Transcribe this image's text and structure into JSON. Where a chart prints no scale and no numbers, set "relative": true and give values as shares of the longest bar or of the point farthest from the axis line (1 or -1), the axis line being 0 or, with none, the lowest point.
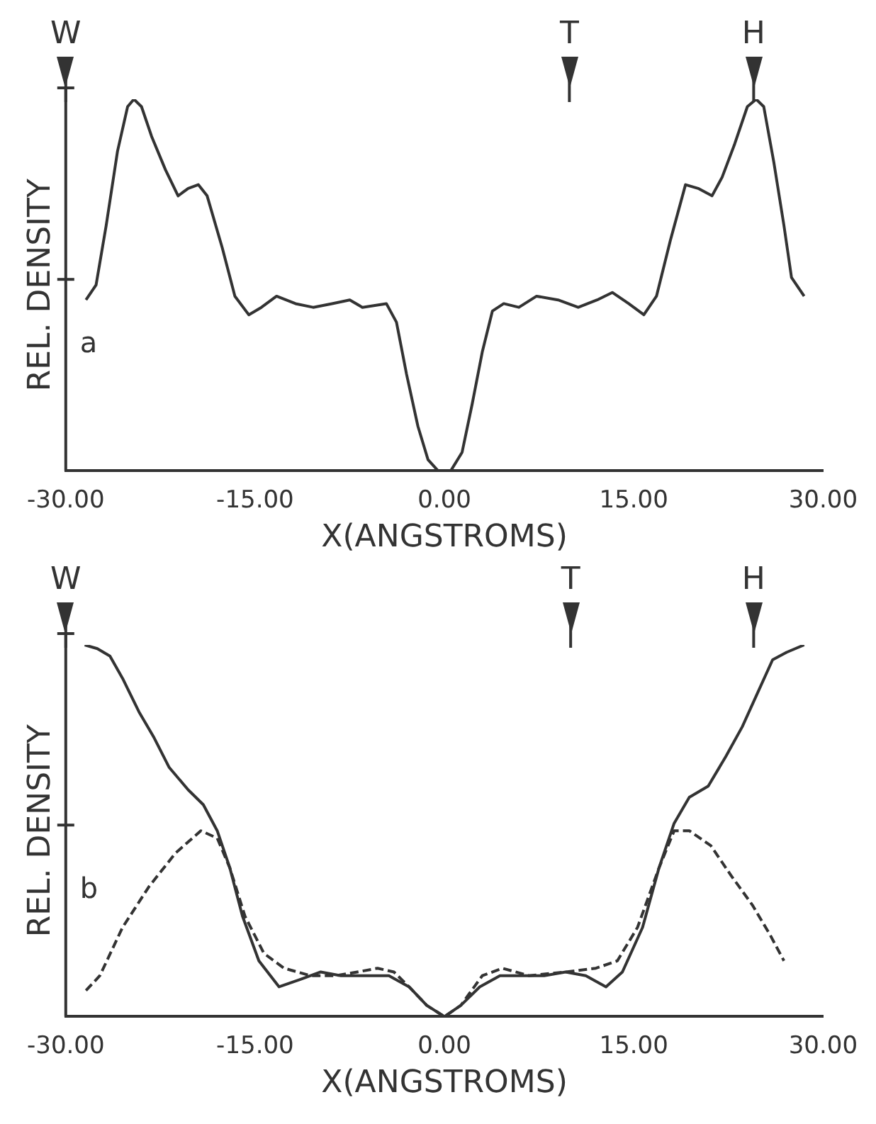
{
  "chart_data": [
    {
      "type": "line",
      "xlabel": "X(ANGSTROMS)",
      "ylabel": "REL. DENSITY",
      "relative": true,
      "xlim": [
        -30,
        30
      ],
      "xticks": [
        {
          "value": -30,
          "label": "-30.00"
        },
        {
          "value": -15,
          "label": "-15.00"
        },
        {
          "value": 0,
          "label": "0.00"
        },
        {
          "value": 15,
          "label": "15.00"
        },
        {
          "value": 30,
          "label": "30.00"
        }
      ],
      "tick_labels": "x",
      "grid": false,
      "legend": false,
      "marker": "none",
      "annotations": [
        "a"
      ],
      "ref_lines": [
        {
          "axis": "x",
          "value": -30,
          "label": "W"
        },
        {
          "axis": "x",
          "value": 9.9,
          "label": "T"
        },
        {
          "axis": "x",
          "value": 24.5,
          "label": "H"
        }
      ],
      "series": [
        {
          "color": "#333333",
          "line_style": "solid",
          "x": [
            -28.4,
            -27.6,
            -26.8,
            -25.9,
            -25.1,
            -24.6,
            -24.0,
            -23.2,
            -22.1,
            -21.1,
            -20.3,
            -19.5,
            -18.8,
            -17.6,
            -16.6,
            -15.5,
            -14.5,
            -13.3,
            -11.8,
            -10.4,
            -8.9,
            -7.5,
            -6.5,
            -4.6,
            -3.8,
            -3.0,
            -2.1,
            -1.3,
            -0.5,
            0.5,
            1.4,
            2.2,
            3.0,
            3.8,
            4.7,
            5.9,
            7.3,
            9.0,
            10.6,
            12.1,
            13.3,
            14.6,
            15.8,
            16.8,
            17.9,
            19.1,
            20.1,
            21.2,
            22.0,
            23.0,
            24.0,
            24.7,
            25.3,
            26.1,
            26.9,
            27.5,
            28.5
          ],
          "values": [
            0.46,
            0.5,
            0.66,
            0.86,
            0.98,
            1,
            0.98,
            0.9,
            0.81,
            0.74,
            0.76,
            0.77,
            0.74,
            0.6,
            0.47,
            0.42,
            0.44,
            0.47,
            0.45,
            0.44,
            0.45,
            0.46,
            0.44,
            0.45,
            0.4,
            0.26,
            0.12,
            0.03,
            0,
            0,
            0.05,
            0.18,
            0.32,
            0.43,
            0.45,
            0.44,
            0.47,
            0.46,
            0.44,
            0.46,
            0.48,
            0.45,
            0.42,
            0.47,
            0.62,
            0.77,
            0.76,
            0.74,
            0.79,
            0.88,
            0.98,
            1,
            0.98,
            0.83,
            0.66,
            0.52,
            0.47
          ]
        }
      ]
    },
    {
      "type": "line",
      "xlabel": "X(ANGSTROMS)",
      "ylabel": "REL. DENSITY",
      "relative": true,
      "xlim": [
        -30,
        30
      ],
      "xticks": [
        {
          "value": -30,
          "label": "-30.00"
        },
        {
          "value": -15,
          "label": "-15.00"
        },
        {
          "value": 0,
          "label": "0.00"
        },
        {
          "value": 15,
          "label": "15.00"
        },
        {
          "value": 30,
          "label": "30.00"
        }
      ],
      "tick_labels": "x",
      "grid": false,
      "legend": false,
      "marker": "none",
      "annotations": [
        "b"
      ],
      "ref_lines": [
        {
          "axis": "x",
          "value": -30,
          "label": "W"
        },
        {
          "axis": "x",
          "value": 10.0,
          "label": "T"
        },
        {
          "axis": "x",
          "value": 24.5,
          "label": "H"
        }
      ],
      "series": [
        {
          "color": "#333333",
          "line_style": "solid",
          "x": [
            -28.5,
            -27.5,
            -26.5,
            -25.5,
            -24.2,
            -23.0,
            -21.8,
            -20.3,
            -19.1,
            -18.0,
            -17.0,
            -16.0,
            -14.7,
            -13.1,
            -11.4,
            -9.8,
            -8.2,
            -6.5,
            -4.4,
            -2.8,
            -1.4,
            0,
            1.3,
            2.8,
            4.4,
            6.3,
            7.9,
            9.6,
            11.2,
            12.8,
            14.1,
            15.7,
            17.0,
            18.2,
            19.4,
            20.9,
            22.3,
            23.6,
            24.8,
            26.0,
            27.1,
            28.5
          ],
          "values": [
            1,
            0.99,
            0.97,
            0.91,
            0.82,
            0.75,
            0.67,
            0.61,
            0.57,
            0.5,
            0.4,
            0.27,
            0.15,
            0.08,
            0.1,
            0.12,
            0.11,
            0.11,
            0.11,
            0.08,
            0.03,
            0,
            0.03,
            0.08,
            0.11,
            0.11,
            0.11,
            0.12,
            0.11,
            0.08,
            0.12,
            0.24,
            0.4,
            0.52,
            0.59,
            0.62,
            0.7,
            0.78,
            0.87,
            0.96,
            0.98,
            1
          ]
        },
        {
          "color": "#333333",
          "line_style": "dashed",
          "x": [
            -28.4,
            -27.3,
            -25.5,
            -23.4,
            -21.3,
            -19.3,
            -18.0,
            -17.0,
            -15.8,
            -14.3,
            -12.7,
            -10.6,
            -8.6,
            -6.9,
            -5.3,
            -4.0,
            -2.8,
            -1.4,
            0,
            1.3,
            3.0,
            4.6,
            6.7,
            9.6,
            12.0,
            13.7,
            15.3,
            17.0,
            18.2,
            19.4,
            21.1,
            22.7,
            24.4,
            25.8,
            26.9
          ],
          "values": [
            0.07,
            0.11,
            0.24,
            0.35,
            0.44,
            0.5,
            0.48,
            0.4,
            0.27,
            0.17,
            0.13,
            0.11,
            0.11,
            0.12,
            0.13,
            0.12,
            0.08,
            0.03,
            0,
            0.03,
            0.11,
            0.13,
            0.11,
            0.12,
            0.13,
            0.15,
            0.24,
            0.4,
            0.5,
            0.5,
            0.46,
            0.38,
            0.3,
            0.22,
            0.15
          ]
        }
      ]
    }
  ]
}
